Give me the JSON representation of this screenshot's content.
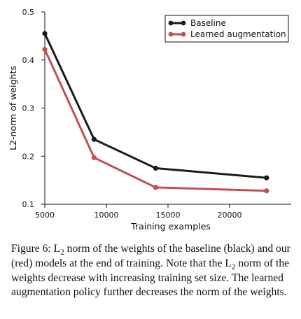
{
  "chart_data": {
    "type": "line",
    "x": [
      5000,
      9000,
      14000,
      23000
    ],
    "xlim": [
      5000,
      25000
    ],
    "ylim": [
      0.1,
      0.5
    ],
    "xticks": [
      "5000",
      "10000",
      "15000",
      "20000"
    ],
    "yticks": [
      "0.1",
      "0.2",
      "0.3",
      "0.4",
      "0.5"
    ],
    "xlabel": "Training examples",
    "ylabel": "L2-norm of weights",
    "legend_position": "top-right",
    "grid": false,
    "series": [
      {
        "name": "Baseline",
        "color": "#1a1a1a",
        "values": [
          0.455,
          0.235,
          0.175,
          0.155
        ]
      },
      {
        "name": "Learned augmentation",
        "color": "#c44e52",
        "values": [
          0.422,
          0.197,
          0.135,
          0.128
        ]
      }
    ]
  },
  "caption": {
    "p1": "Figure 6: L",
    "sub1": "2",
    "p2": " norm of the weights of the baseline (black) and our (red) models at the end of training. Note that the L",
    "sub2": "2",
    "p3": " norm of the weights decrease with increasing training set size. The learned augmentation policy further decreases the norm of the weights."
  }
}
